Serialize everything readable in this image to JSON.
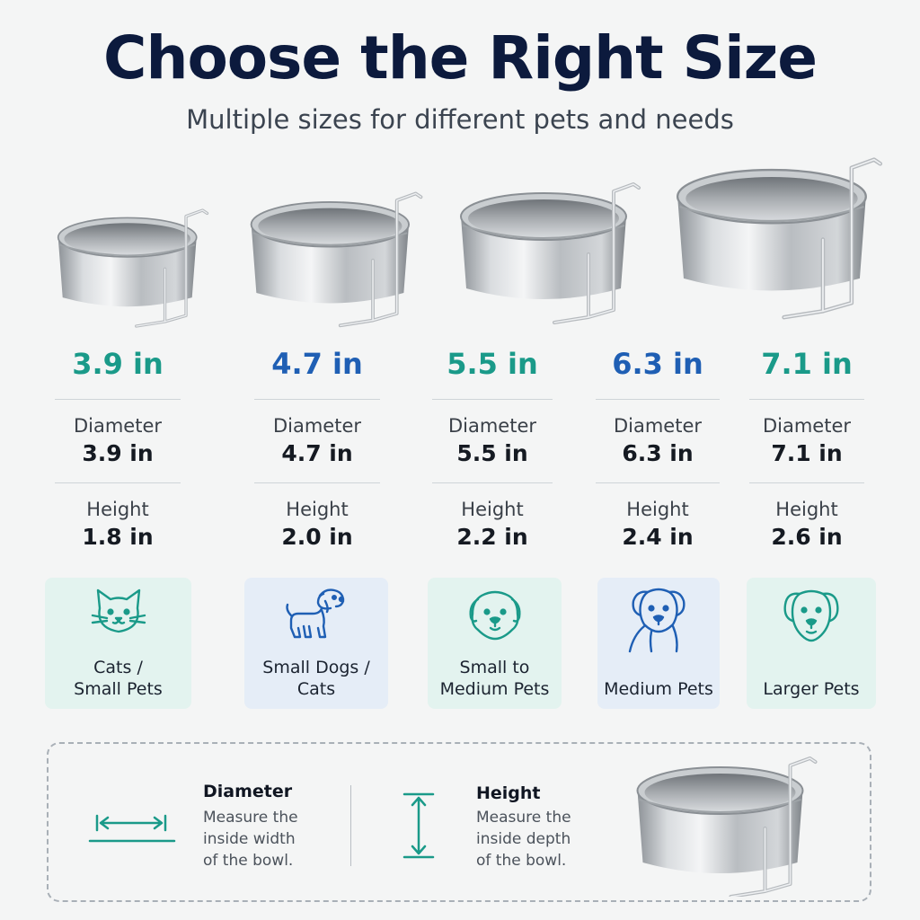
{
  "header": {
    "title": "Choose the Right Size",
    "subtitle": "Multiple sizes for different pets and needs"
  },
  "sizes": [
    {
      "size_label": "3.9 in",
      "diameter_label": "Diameter",
      "diameter": "3.9 in",
      "height_label": "Height",
      "height": "1.8 in",
      "pet_line1": "Cats /",
      "pet_line2": "Small Pets",
      "pet_icon": "cat-icon",
      "accent": "#1a9a89",
      "card_bg": "#e3f3ef"
    },
    {
      "size_label": "4.7 in",
      "diameter_label": "Diameter",
      "diameter": "4.7 in",
      "height_label": "Height",
      "height": "2.0 in",
      "pet_line1": "Small Dogs /",
      "pet_line2": "Cats",
      "pet_icon": "small-dog-icon",
      "accent": "#1f5fb4",
      "card_bg": "#e5edf7"
    },
    {
      "size_label": "5.5 in",
      "diameter_label": "Diameter",
      "diameter": "5.5 in",
      "height_label": "Height",
      "height": "2.2 in",
      "pet_line1": "Small to",
      "pet_line2": "Medium Pets",
      "pet_icon": "fluffy-dog-icon",
      "accent": "#1a9a89",
      "card_bg": "#e3f3ef"
    },
    {
      "size_label": "6.3 in",
      "diameter_label": "Diameter",
      "diameter": "6.3 in",
      "height_label": "Height",
      "height": "2.4 in",
      "pet_line1": "Medium Pets",
      "pet_line2": "",
      "pet_icon": "medium-dog-icon",
      "accent": "#1f5fb4",
      "card_bg": "#e5edf7"
    },
    {
      "size_label": "7.1 in",
      "diameter_label": "Diameter",
      "diameter": "7.1 in",
      "height_label": "Height",
      "height": "2.6 in",
      "pet_line1": "Larger Pets",
      "pet_line2": "",
      "pet_icon": "large-dog-icon",
      "accent": "#1a9a89",
      "card_bg": "#e3f3ef"
    }
  ],
  "guide": {
    "diameter_title": "Diameter",
    "diameter_line1": "Measure the",
    "diameter_line2": "inside width",
    "diameter_line3": "of the bowl.",
    "height_title": "Height",
    "height_line1": "Measure the",
    "height_line2": "inside depth",
    "height_line3": "of the bowl.",
    "icon_color": "#1a9a89"
  }
}
